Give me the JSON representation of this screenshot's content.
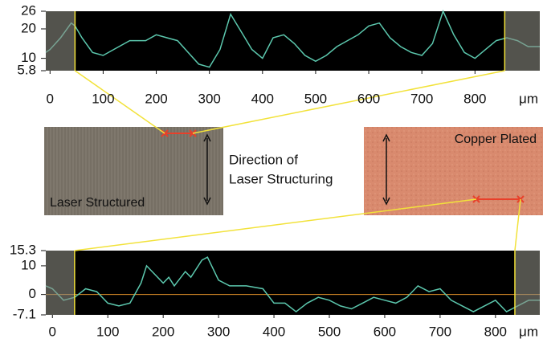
{
  "chart_data": [
    {
      "type": "line",
      "x_label": "μm",
      "x": [
        -8,
        0,
        20,
        40,
        47,
        60,
        80,
        100,
        120,
        150,
        180,
        200,
        220,
        240,
        260,
        280,
        300,
        320,
        340,
        360,
        380,
        400,
        420,
        440,
        460,
        480,
        500,
        520,
        540,
        560,
        580,
        600,
        620,
        640,
        660,
        680,
        700,
        720,
        740,
        760,
        780,
        800,
        820,
        840,
        860,
        880,
        900,
        922
      ],
      "series": [
        {
          "color": "#5cc8ae",
          "values": [
            12,
            13,
            17,
            22,
            21,
            17,
            12,
            11,
            13,
            16,
            16,
            18,
            17,
            16,
            12,
            8,
            7,
            13,
            25,
            19,
            13,
            10,
            17,
            18,
            15,
            11,
            9,
            11,
            14,
            16,
            18,
            21,
            22,
            17,
            14,
            12,
            11,
            15,
            26,
            18,
            12,
            10,
            13,
            16,
            17,
            16,
            14,
            14
          ]
        }
      ],
      "xlim": [
        -8,
        922
      ],
      "xticks": [
        0,
        100,
        200,
        300,
        400,
        500,
        600,
        700,
        800
      ],
      "ylim": [
        5.8,
        26
      ],
      "yticks": [
        5.8,
        10,
        20,
        26
      ],
      "markers": [
        47,
        856
      ],
      "marker_color": "#f2e23a"
    },
    {
      "type": "line",
      "x_label": "μm",
      "x": [
        -12,
        0,
        20,
        40,
        60,
        80,
        100,
        120,
        140,
        160,
        170,
        180,
        200,
        210,
        220,
        240,
        250,
        270,
        280,
        300,
        320,
        350,
        380,
        400,
        420,
        440,
        460,
        480,
        500,
        520,
        540,
        560,
        580,
        600,
        620,
        640,
        660,
        680,
        700,
        720,
        740,
        760,
        780,
        800,
        820,
        840,
        860,
        880
      ],
      "series": [
        {
          "color": "#5cc8ae",
          "values": [
            3,
            2,
            -2,
            -1,
            2,
            1,
            -3,
            -4,
            -3,
            4,
            10,
            8,
            4,
            6,
            3,
            8,
            6,
            12,
            13,
            5,
            3,
            3,
            2,
            -3,
            -3,
            -6,
            -3,
            -1,
            -2,
            -4,
            -5,
            -3,
            -1,
            -2,
            -3,
            -1,
            3,
            1,
            2,
            -2,
            -4,
            -6,
            -4,
            -2,
            -6,
            -4,
            -2,
            -2
          ]
        }
      ],
      "xlim": [
        -12,
        880
      ],
      "xticks": [
        0,
        100,
        200,
        300,
        400,
        500,
        600,
        700,
        800
      ],
      "ylim": [
        -7.1,
        15.3
      ],
      "yticks": [
        -7.1,
        0,
        10,
        15.3
      ],
      "markers": [
        40,
        835
      ],
      "marker_color": "#f2e23a",
      "reference_line": 0,
      "reference_color": "#e0902a"
    }
  ],
  "images": {
    "left_label": "Laser Structured",
    "right_label": "Copper Plated",
    "direction_line1": "Direction of",
    "direction_line2": "Laser Structuring"
  }
}
